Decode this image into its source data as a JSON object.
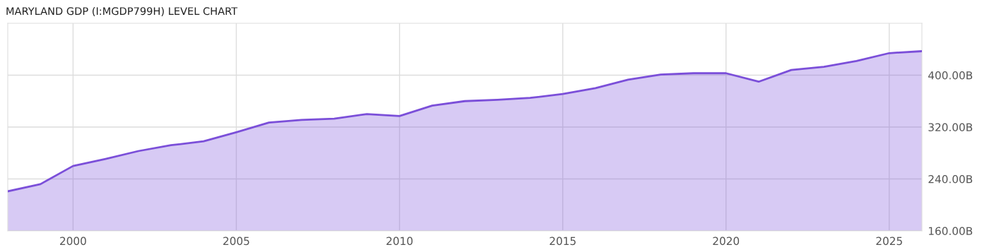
{
  "chart_data": {
    "type": "area",
    "title": "MARYLAND GDP (I:MGDP799H) LEVEL CHART",
    "x": [
      1998,
      1999,
      2000,
      2001,
      2002,
      2003,
      2004,
      2005,
      2006,
      2007,
      2008,
      2009,
      2010,
      2011,
      2012,
      2013,
      2014,
      2015,
      2016,
      2017,
      2018,
      2019,
      2020,
      2021,
      2022,
      2023,
      2024,
      2025,
      2026
    ],
    "series": [
      {
        "color": "#7b4fd9",
        "values": [
          221,
          232,
          260,
          271,
          283,
          292,
          298,
          312,
          327,
          331,
          333,
          340,
          337,
          353,
          360,
          362,
          365,
          371,
          380,
          393,
          401,
          403,
          403,
          390,
          408,
          413,
          422,
          434,
          437
        ]
      }
    ],
    "xlim": [
      1998,
      2026
    ],
    "xticks": [
      2000,
      2005,
      2010,
      2015,
      2020,
      2025
    ],
    "ylim": [
      160,
      480
    ],
    "yticks": [
      {
        "value": 160,
        "label": "160.00B"
      },
      {
        "value": 240,
        "label": "240.00B"
      },
      {
        "value": 320,
        "label": "320.00B"
      },
      {
        "value": 400,
        "label": "400.00B"
      }
    ],
    "grid": true,
    "legend": false
  }
}
